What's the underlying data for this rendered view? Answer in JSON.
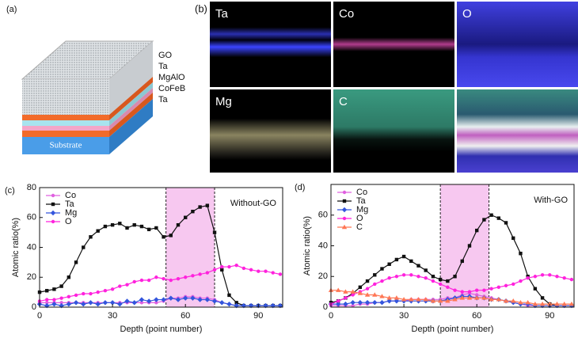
{
  "figure": {
    "a": {
      "label": "(a)",
      "layers": [
        "GO",
        "Ta",
        "MgAlO",
        "CoFeB",
        "Ta"
      ],
      "substrate": "Substrate"
    },
    "b": {
      "label": "(b)",
      "maps": [
        "Ta",
        "Co",
        "O",
        "Mg",
        "C"
      ]
    }
  },
  "chart_data": [
    {
      "type": "line",
      "panel": "(c)",
      "annotation": "Without-GO",
      "xlabel": "Depth (point number)",
      "ylabel": "Atomic ratio(%)",
      "xlim": [
        0,
        100
      ],
      "ylim": [
        0,
        80
      ],
      "xticks": [
        0,
        30,
        60,
        90
      ],
      "yticks": [
        0,
        20,
        40,
        60,
        80
      ],
      "legend": "upper left",
      "highlight_range": [
        52,
        72
      ],
      "highlight_color": "#f7c8f0",
      "x": [
        0,
        3,
        6,
        9,
        12,
        15,
        18,
        21,
        24,
        27,
        30,
        33,
        36,
        39,
        42,
        45,
        48,
        51,
        54,
        57,
        60,
        63,
        66,
        69,
        72,
        75,
        78,
        81,
        84,
        87,
        90,
        93,
        96,
        99
      ],
      "series": [
        {
          "name": "Co",
          "color": "#e060e0",
          "marker": "circle",
          "values": [
            3,
            3,
            3,
            3,
            3,
            3,
            3,
            3,
            3,
            3,
            3,
            3,
            3,
            3,
            3,
            3,
            3,
            4,
            6,
            6,
            7,
            7,
            6,
            6,
            5,
            3,
            2,
            1,
            1,
            1,
            1,
            1,
            1,
            1
          ]
        },
        {
          "name": "Ta",
          "color": "#111111",
          "marker": "square",
          "values": [
            10,
            11,
            12,
            14,
            20,
            30,
            40,
            47,
            51,
            54,
            55,
            56,
            53,
            55,
            54,
            52,
            53,
            47,
            48,
            55,
            60,
            64,
            67,
            68,
            50,
            25,
            8,
            3,
            1,
            1,
            1,
            1,
            1,
            1
          ]
        },
        {
          "name": "Mg",
          "color": "#3355dd",
          "marker": "diamond",
          "values": [
            2,
            1,
            2,
            1,
            2,
            3,
            2,
            3,
            2,
            3,
            3,
            2,
            4,
            3,
            5,
            4,
            5,
            5,
            6,
            5,
            6,
            6,
            5,
            5,
            4,
            3,
            2,
            1,
            1,
            1,
            1,
            1,
            1,
            1
          ]
        },
        {
          "name": "O",
          "color": "#ff22dd",
          "marker": "circle",
          "values": [
            4,
            5,
            5,
            6,
            7,
            8,
            9,
            9,
            10,
            11,
            12,
            14,
            15,
            17,
            18,
            18,
            20,
            19,
            18,
            19,
            20,
            21,
            22,
            23,
            25,
            27,
            27,
            28,
            26,
            25,
            24,
            24,
            23,
            22
          ]
        }
      ]
    },
    {
      "type": "line",
      "panel": "(d)",
      "annotation": "With-GO",
      "xlabel": "Depth (point number)",
      "ylabel": "Atomic ratio(%)",
      "xlim": [
        0,
        100
      ],
      "ylim": [
        0,
        80
      ],
      "xticks": [
        0,
        30,
        60,
        90
      ],
      "yticks": [
        0,
        20,
        40,
        60
      ],
      "legend": "upper left",
      "highlight_range": [
        45,
        65
      ],
      "highlight_color": "#f7c8f0",
      "x": [
        0,
        3,
        6,
        9,
        12,
        15,
        18,
        21,
        24,
        27,
        30,
        33,
        36,
        39,
        42,
        45,
        48,
        51,
        54,
        57,
        60,
        63,
        66,
        69,
        72,
        75,
        78,
        81,
        84,
        87,
        90,
        93,
        96,
        99
      ],
      "series": [
        {
          "name": "Co",
          "color": "#e060e0",
          "marker": "circle",
          "values": [
            1,
            1,
            1,
            1,
            2,
            2,
            3,
            3,
            4,
            4,
            4,
            5,
            5,
            5,
            5,
            5,
            6,
            6,
            8,
            9,
            8,
            7,
            6,
            5,
            4,
            3,
            2,
            1,
            1,
            1,
            1,
            1,
            1,
            1
          ]
        },
        {
          "name": "Ta",
          "color": "#111111",
          "marker": "square",
          "values": [
            3,
            4,
            6,
            9,
            13,
            17,
            21,
            25,
            28,
            31,
            33,
            30,
            27,
            24,
            20,
            18,
            17,
            20,
            30,
            40,
            50,
            57,
            60,
            58,
            55,
            45,
            35,
            20,
            12,
            6,
            2,
            1,
            1,
            1
          ]
        },
        {
          "name": "Mg",
          "color": "#3355dd",
          "marker": "diamond",
          "values": [
            2,
            2,
            2,
            3,
            3,
            3,
            3,
            3,
            4,
            4,
            4,
            4,
            4,
            4,
            4,
            4,
            5,
            6,
            7,
            7,
            6,
            6,
            5,
            5,
            4,
            3,
            2,
            2,
            1,
            1,
            1,
            1,
            1,
            1
          ]
        },
        {
          "name": "O",
          "color": "#ff22dd",
          "marker": "circle",
          "values": [
            2,
            4,
            6,
            8,
            10,
            12,
            15,
            17,
            19,
            20,
            21,
            21,
            20,
            19,
            17,
            15,
            13,
            11,
            10,
            10,
            11,
            11,
            12,
            13,
            14,
            15,
            17,
            19,
            20,
            21,
            21,
            20,
            19,
            18
          ]
        },
        {
          "name": "C",
          "color": "#ff7755",
          "marker": "triangle",
          "values": [
            11,
            11,
            10,
            10,
            9,
            8,
            8,
            7,
            6,
            6,
            5,
            5,
            5,
            5,
            4,
            4,
            4,
            5,
            6,
            6,
            6,
            6,
            5,
            5,
            4,
            4,
            3,
            3,
            2,
            2,
            2,
            2,
            2,
            2
          ]
        }
      ]
    }
  ]
}
